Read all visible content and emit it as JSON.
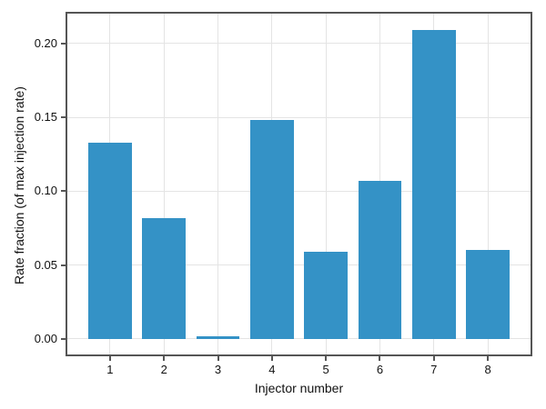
{
  "chart_data": {
    "type": "bar",
    "title": "",
    "xlabel": "Injector number",
    "ylabel": "Rate fraction (of max injection rate)",
    "categories": [
      "1",
      "2",
      "3",
      "4",
      "5",
      "6",
      "7",
      "8"
    ],
    "values": [
      0.133,
      0.082,
      0.002,
      0.148,
      0.059,
      0.107,
      0.209,
      0.06
    ],
    "x_positions": [
      1,
      2,
      3,
      4,
      5,
      6,
      7,
      8
    ],
    "yticks": [
      0.0,
      0.05,
      0.1,
      0.15,
      0.2
    ],
    "ytick_labels": [
      "0.00",
      "0.05",
      "0.10",
      "0.15",
      "0.20"
    ],
    "ylim": [
      -0.0105,
      0.2202
    ],
    "xlim": [
      0.21,
      8.79
    ],
    "bar_width_units": 0.8,
    "grid": true,
    "legend": null,
    "colors": {
      "bar": "#3492c6",
      "grid": "#e4e4e4",
      "spine": "#555555",
      "tick": "#555555",
      "text": "#111111",
      "background": "#ffffff"
    }
  }
}
